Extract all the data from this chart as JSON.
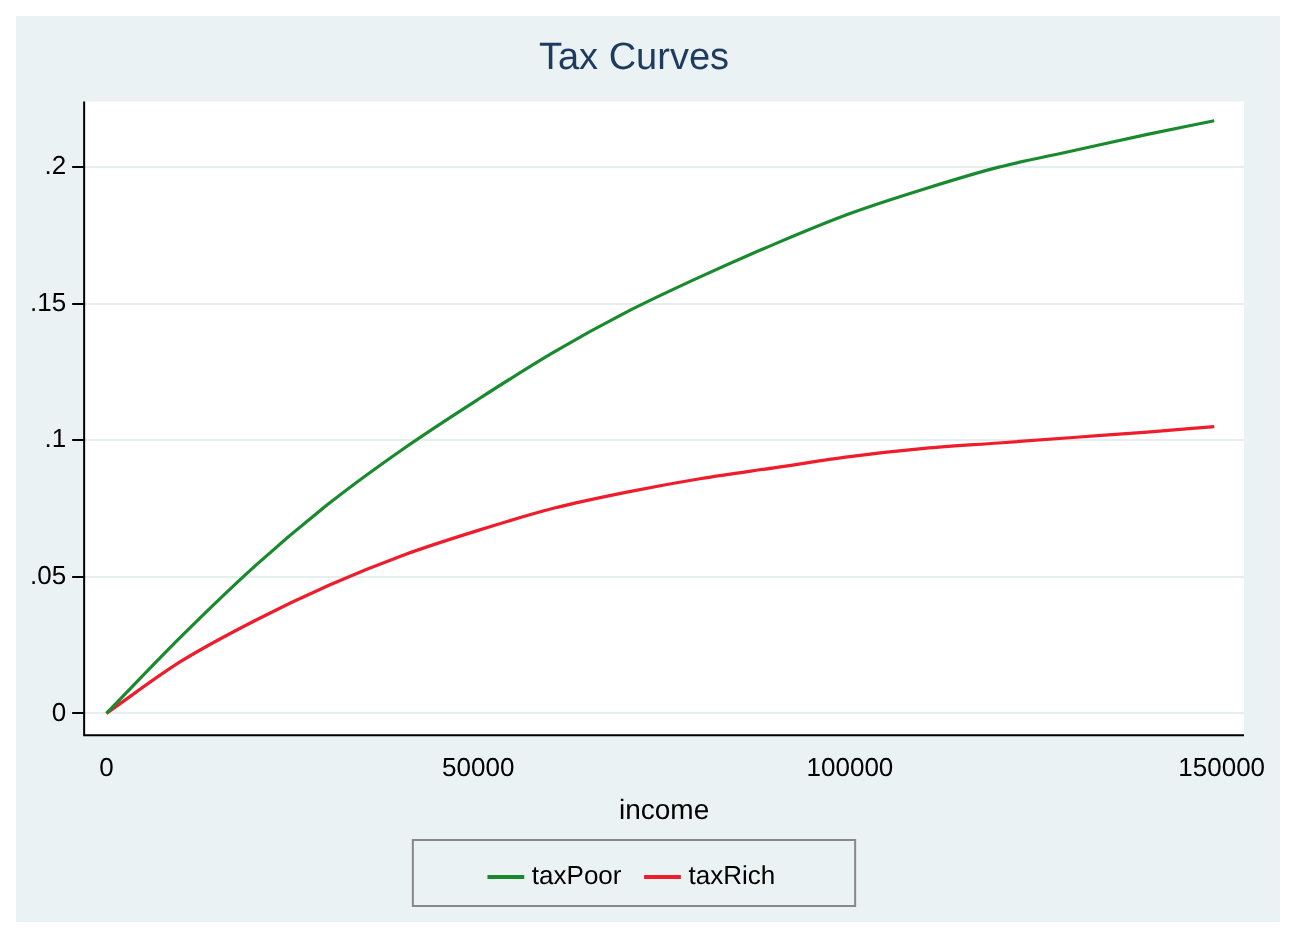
{
  "chart_data": {
    "type": "line",
    "title": "Tax Curves",
    "xlabel": "income",
    "x": [
      0,
      10000,
      20000,
      30000,
      40000,
      50000,
      60000,
      70000,
      80000,
      90000,
      100000,
      110000,
      120000,
      130000,
      140000,
      149000
    ],
    "series": [
      {
        "name": "taxPoor",
        "color": "#1a8a2e",
        "values": [
          0,
          0.028,
          0.054,
          0.077,
          0.097,
          0.115,
          0.132,
          0.147,
          0.16,
          0.172,
          0.183,
          0.192,
          0.2,
          0.206,
          0.212,
          0.217
        ]
      },
      {
        "name": "taxRich",
        "color": "#ef1c2c",
        "values": [
          0,
          0.019,
          0.034,
          0.047,
          0.058,
          0.067,
          0.075,
          0.081,
          0.086,
          0.09,
          0.094,
          0.097,
          0.099,
          0.101,
          0.103,
          0.105
        ]
      }
    ],
    "xlim": [
      -3000,
      153000
    ],
    "xticks": [
      0,
      50000,
      100000,
      150000
    ],
    "ylim": [
      -0.008,
      0.224
    ],
    "yticks": [
      {
        "value": 0,
        "label": "0"
      },
      {
        "value": 0.05,
        "label": ".05"
      },
      {
        "value": 0.1,
        "label": ".1"
      },
      {
        "value": 0.15,
        "label": ".15"
      },
      {
        "value": 0.2,
        "label": ".2"
      }
    ],
    "grid": "y",
    "legend": "bottom",
    "marker": "none",
    "line_style": "solid"
  }
}
